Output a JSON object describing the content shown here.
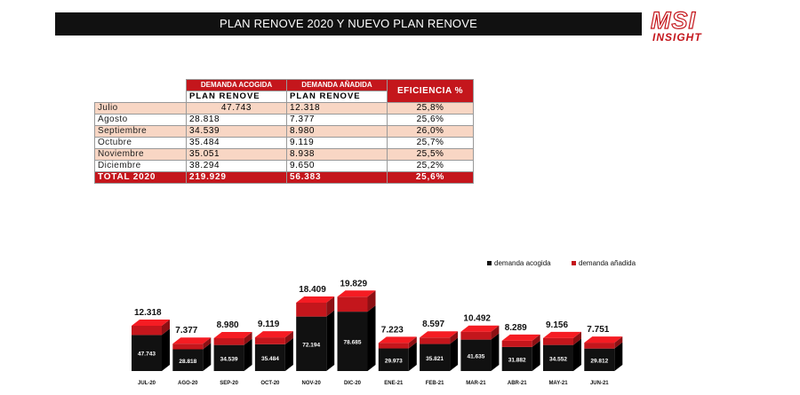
{
  "header": {
    "title": "PLAN RENOVE 2020 Y NUEVO PLAN RENOVE"
  },
  "logo": {
    "top": "MSI",
    "bottom": "INSIGHT"
  },
  "table": {
    "headers": {
      "col1_top": "DEMANDA ACOGIDA",
      "col1_bottom": "PLAN RENOVE",
      "col2_top": "DEMANDA AÑADIDA",
      "col2_bottom": "PLAN RENOVE",
      "col3": "EFICIENCIA %"
    },
    "rows": [
      {
        "month": "Julio",
        "acogida": "47.743",
        "anadida": "12.318",
        "eficiencia": "25,8%"
      },
      {
        "month": "Agosto",
        "acogida": "28.818",
        "anadida": "7.377",
        "eficiencia": "25,6%"
      },
      {
        "month": "Septiembre",
        "acogida": "34.539",
        "anadida": "8.980",
        "eficiencia": "26,0%"
      },
      {
        "month": "Octubre",
        "acogida": "35.484",
        "anadida": "9.119",
        "eficiencia": "25,7%"
      },
      {
        "month": "Noviembre",
        "acogida": "35.051",
        "anadida": "8.938",
        "eficiencia": "25,5%"
      },
      {
        "month": "Diciembre",
        "acogida": "38.294",
        "anadida": "9.650",
        "eficiencia": "25,2%"
      }
    ],
    "total": {
      "label": "TOTAL 2020",
      "acogida": "219.929",
      "anadida": "56.383",
      "eficiencia": "25,6%"
    }
  },
  "colors": {
    "acogida": "#111111",
    "anadida": "#c4161c",
    "peach": "#f8d6c4"
  },
  "chart_data": {
    "type": "bar",
    "stacked": true,
    "categories": [
      "JUL-20",
      "AGO-20",
      "SEP-20",
      "OCT-20",
      "NOV-20",
      "DIC-20",
      "ENE-21",
      "FEB-21",
      "MAR-21",
      "ABR-21",
      "MAY-21",
      "JUN-21"
    ],
    "series": [
      {
        "name": "demanda acogida",
        "values": [
          47743,
          28818,
          34539,
          35484,
          72194,
          78685,
          29973,
          35821,
          41635,
          31882,
          34552,
          29812
        ],
        "labels": [
          "47.743",
          "28.818",
          "34.539",
          "35.484",
          "72.194",
          "78.685",
          "29.973",
          "35.821",
          "41.635",
          "31.882",
          "34.552",
          "29.812"
        ]
      },
      {
        "name": "demanda añadida",
        "values": [
          12318,
          7377,
          8980,
          9119,
          18409,
          19829,
          7223,
          8597,
          10492,
          8289,
          9156,
          7751
        ],
        "labels": [
          "12.318",
          "7.377",
          "8.980",
          "9.119",
          "18.409",
          "19.829",
          "7.223",
          "8.597",
          "10.492",
          "8.289",
          "9.156",
          "7.751"
        ]
      }
    ],
    "legend_position": "top-right",
    "grid": false
  }
}
